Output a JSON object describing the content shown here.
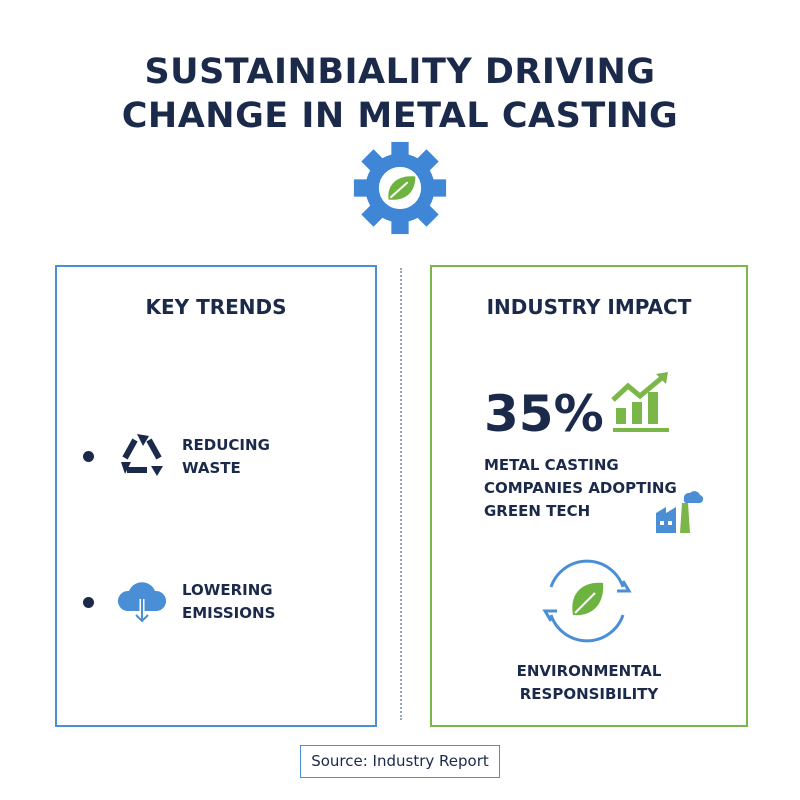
{
  "title": {
    "line1": "SUSTAINBIALITY DRIVING",
    "line2": "CHANGE IN METAL CASTING"
  },
  "colors": {
    "navy": "#1b2a4a",
    "blue": "#4a8fd6",
    "green": "#7ab648"
  },
  "key_trends": {
    "heading": "KEY TRENDS",
    "items": [
      {
        "icon": "recycle-icon",
        "line1": "REDUCING",
        "line2": "WASTE"
      },
      {
        "icon": "cloud-download-icon",
        "line1": "LOWERING",
        "line2": "EMISSIONS"
      }
    ]
  },
  "industry_impact": {
    "heading": "INDUSTRY IMPACT",
    "stat": "35%",
    "stat_line1": "METAL CASTING",
    "stat_line2": "COMPANIES ADOPTING",
    "stat_line3": "GREEN TECH",
    "env_line1": "ENVIRONMENTAL",
    "env_line2": "RESPONSIBILITY"
  },
  "source": "Source: Industry Report"
}
